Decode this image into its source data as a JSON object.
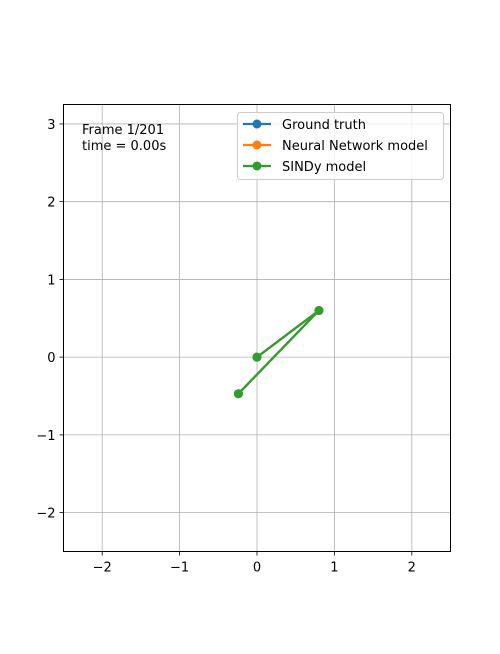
{
  "chart_data": {
    "type": "line",
    "title": "",
    "xlabel": "",
    "ylabel": "",
    "xlim": [
      -2.5,
      2.5
    ],
    "ylim": [
      -2.5,
      3.25
    ],
    "xticks": [
      -2,
      -1,
      0,
      1,
      2
    ],
    "yticks": [
      -2,
      -1,
      0,
      1,
      2,
      3
    ],
    "xtick_labels": [
      "−2",
      "−1",
      "0",
      "1",
      "2"
    ],
    "ytick_labels": [
      "−2",
      "−1",
      "0",
      "1",
      "2",
      "3"
    ],
    "grid": true,
    "legend_position": "top-right",
    "annotations": {
      "frame": "Frame 1/201",
      "time": "time = 0.00s"
    },
    "series": [
      {
        "name": "Ground truth",
        "color": "#1f77b4",
        "x": [
          0,
          0.8,
          -0.24
        ],
        "y": [
          0,
          0.6,
          -0.47
        ]
      },
      {
        "name": "Neural Network model",
        "color": "#ff7f0e",
        "x": [
          0,
          0.8,
          -0.24
        ],
        "y": [
          0,
          0.6,
          -0.47
        ]
      },
      {
        "name": "SINDy model",
        "color": "#2ca02c",
        "x": [
          0,
          0.8,
          -0.24
        ],
        "y": [
          0,
          0.6,
          -0.47
        ]
      }
    ]
  }
}
